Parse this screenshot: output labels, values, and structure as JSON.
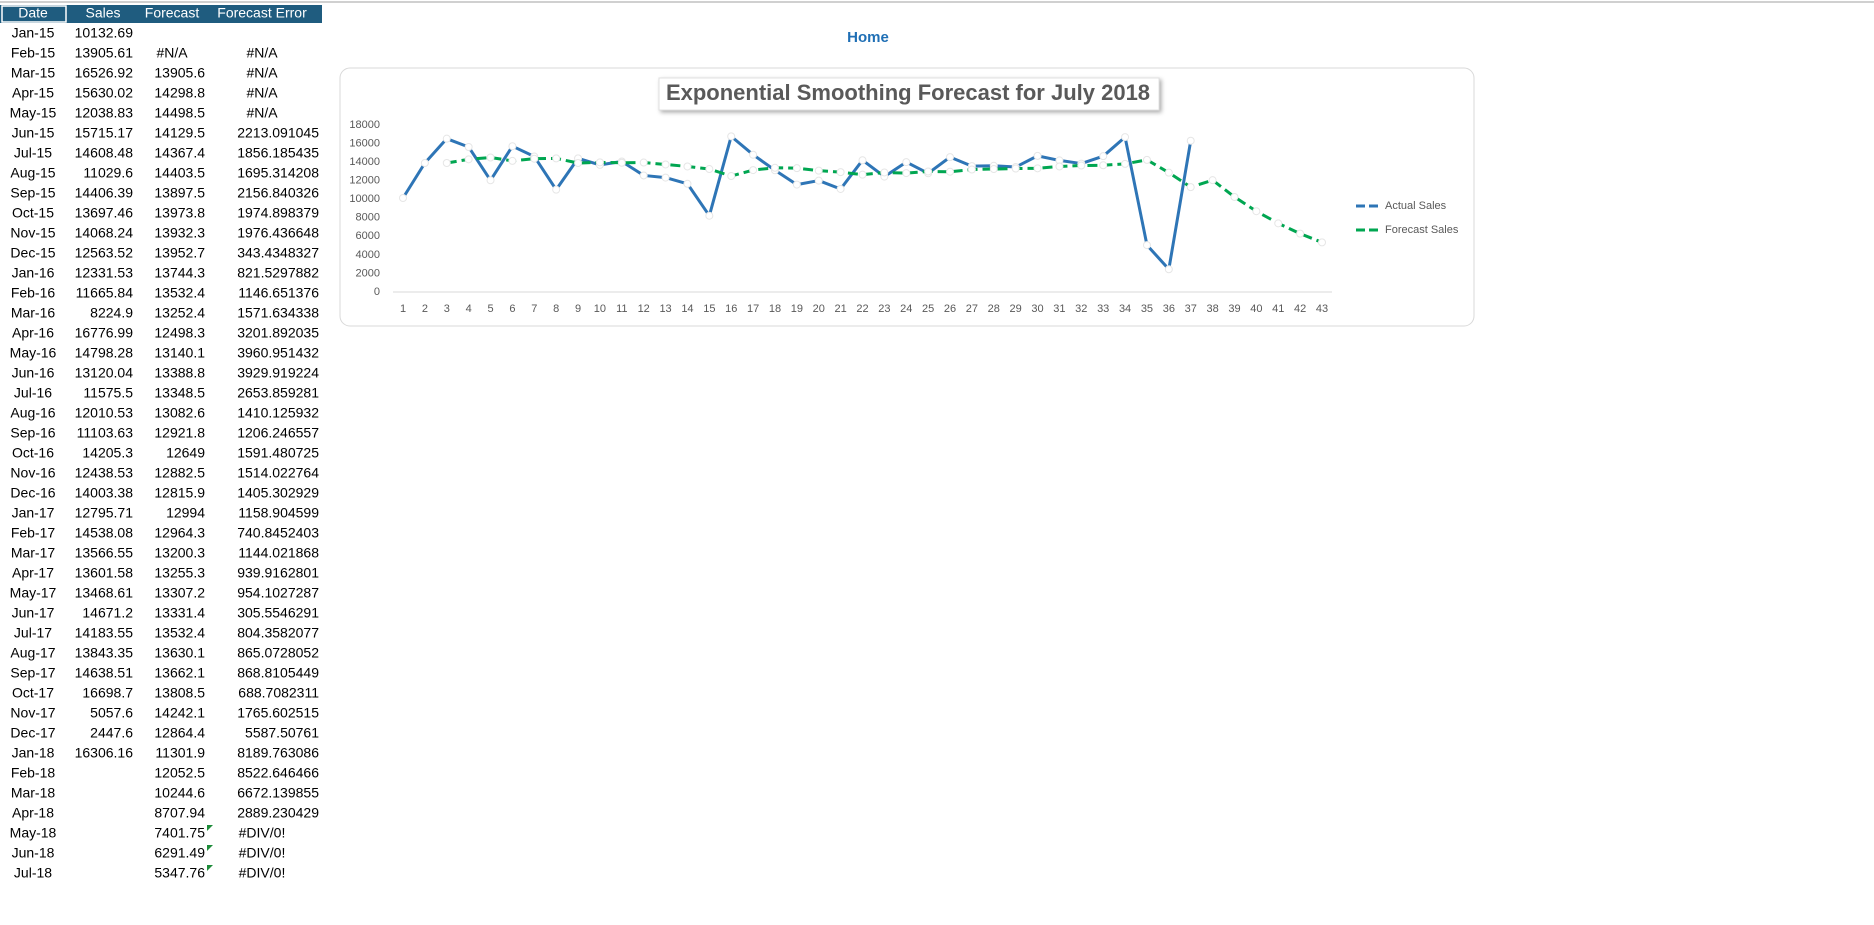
{
  "home": "Home",
  "table": {
    "header": [
      "Date",
      "Sales",
      "Forecast",
      "Forecast Error"
    ],
    "rows": [
      [
        "Jan-15",
        "10132.69",
        null,
        null
      ],
      [
        "Feb-15",
        "13905.61",
        "#N/A",
        "#N/A"
      ],
      [
        "Mar-15",
        "16526.92",
        "13905.6",
        "#N/A"
      ],
      [
        "Apr-15",
        "15630.02",
        "14298.8",
        "#N/A"
      ],
      [
        "May-15",
        "12038.83",
        "14498.5",
        "#N/A"
      ],
      [
        "Jun-15",
        "15715.17",
        "14129.5",
        "2213.091045"
      ],
      [
        "Jul-15",
        "14608.48",
        "14367.4",
        "1856.185435"
      ],
      [
        "Aug-15",
        "11029.6",
        "14403.5",
        "1695.314208"
      ],
      [
        "Sep-15",
        "14406.39",
        "13897.5",
        "2156.840326"
      ],
      [
        "Oct-15",
        "13697.46",
        "13973.8",
        "1974.898379"
      ],
      [
        "Nov-15",
        "14068.24",
        "13932.3",
        "1976.436648"
      ],
      [
        "Dec-15",
        "12563.52",
        "13952.7",
        "343.4348327"
      ],
      [
        "Jan-16",
        "12331.53",
        "13744.3",
        "821.5297882"
      ],
      [
        "Feb-16",
        "11665.84",
        "13532.4",
        "1146.651376"
      ],
      [
        "Mar-16",
        "8224.9",
        "13252.4",
        "1571.634338"
      ],
      [
        "Apr-16",
        "16776.99",
        "12498.3",
        "3201.892035"
      ],
      [
        "May-16",
        "14798.28",
        "13140.1",
        "3960.951432"
      ],
      [
        "Jun-16",
        "13120.04",
        "13388.8",
        "3929.919224"
      ],
      [
        "Jul-16",
        "11575.5",
        "13348.5",
        "2653.859281"
      ],
      [
        "Aug-16",
        "12010.53",
        "13082.6",
        "1410.125932"
      ],
      [
        "Sep-16",
        "11103.63",
        "12921.8",
        "1206.246557"
      ],
      [
        "Oct-16",
        "14205.3",
        "12649",
        "1591.480725"
      ],
      [
        "Nov-16",
        "12438.53",
        "12882.5",
        "1514.022764"
      ],
      [
        "Dec-16",
        "14003.38",
        "12815.9",
        "1405.302929"
      ],
      [
        "Jan-17",
        "12795.71",
        "12994",
        "1158.904599"
      ],
      [
        "Feb-17",
        "14538.08",
        "12964.3",
        "740.8452403"
      ],
      [
        "Mar-17",
        "13566.55",
        "13200.3",
        "1144.021868"
      ],
      [
        "Apr-17",
        "13601.58",
        "13255.3",
        "939.9162801"
      ],
      [
        "May-17",
        "13468.61",
        "13307.2",
        "954.1027287"
      ],
      [
        "Jun-17",
        "14671.2",
        "13331.4",
        "305.5546291"
      ],
      [
        "Jul-17",
        "14183.55",
        "13532.4",
        "804.3582077"
      ],
      [
        "Aug-17",
        "13843.35",
        "13630.1",
        "865.0728052"
      ],
      [
        "Sep-17",
        "14638.51",
        "13662.1",
        "868.8105449"
      ],
      [
        "Oct-17",
        "16698.7",
        "13808.5",
        "688.7082311"
      ],
      [
        "Nov-17",
        "5057.6",
        "14242.1",
        "1765.602515"
      ],
      [
        "Dec-17",
        "2447.6",
        "12864.4",
        "5587.50761"
      ],
      [
        "Jan-18",
        "16306.16",
        "11301.9",
        "8189.763086"
      ],
      [
        "Feb-18",
        null,
        "12052.5",
        "8522.646466"
      ],
      [
        "Mar-18",
        null,
        "10244.6",
        "6672.139855"
      ],
      [
        "Apr-18",
        null,
        "8707.94",
        "2889.230429"
      ],
      [
        "May-18",
        null,
        "7401.75",
        "#DIV/0!"
      ],
      [
        "Jun-18",
        null,
        "6291.49",
        "#DIV/0!"
      ],
      [
        "Jul-18",
        null,
        "5347.76",
        "#DIV/0!"
      ]
    ]
  },
  "chart_data": {
    "type": "line",
    "title": "Exponential Smoothing Forecast  for July 2018",
    "categories": [
      1,
      2,
      3,
      4,
      5,
      6,
      7,
      8,
      9,
      10,
      11,
      12,
      13,
      14,
      15,
      16,
      17,
      18,
      19,
      20,
      21,
      22,
      23,
      24,
      25,
      26,
      27,
      28,
      29,
      30,
      31,
      32,
      33,
      34,
      35,
      36,
      37,
      38,
      39,
      40,
      41,
      42,
      43
    ],
    "ylim": [
      0,
      18000
    ],
    "yticks": [
      0,
      2000,
      4000,
      6000,
      8000,
      10000,
      12000,
      14000,
      16000,
      18000
    ],
    "legend": "right",
    "series": [
      {
        "name": "Actual Sales",
        "color": "#2e75b6",
        "dashed": false,
        "values": [
          10132.69,
          13905.61,
          16526.92,
          15630.02,
          12038.83,
          15715.17,
          14608.48,
          11029.6,
          14406.39,
          13697.46,
          14068.24,
          12563.52,
          12331.53,
          11665.84,
          8224.9,
          16776.99,
          14798.28,
          13120.04,
          11575.5,
          12010.53,
          11103.63,
          14205.3,
          12438.53,
          14003.38,
          12795.71,
          14538.08,
          13566.55,
          13601.58,
          13468.61,
          14671.2,
          14183.55,
          13843.35,
          14638.51,
          16698.7,
          5057.6,
          2447.6,
          16306.16,
          null,
          null,
          null,
          null,
          null,
          null
        ]
      },
      {
        "name": "Forecast Sales",
        "color": "#00a651",
        "dashed": true,
        "values": [
          null,
          null,
          13905.6,
          14298.8,
          14498.5,
          14129.5,
          14367.4,
          14403.5,
          13897.5,
          13973.8,
          13932.3,
          13952.7,
          13744.3,
          13532.4,
          13252.4,
          12498.3,
          13140.1,
          13388.8,
          13348.5,
          13082.6,
          12921.8,
          12649,
          12882.5,
          12815.9,
          12994,
          12964.3,
          13200.3,
          13255.3,
          13307.2,
          13331.4,
          13532.4,
          13630.1,
          13662.1,
          13808.5,
          14242.1,
          12864.4,
          11301.9,
          12052.5,
          10244.6,
          8707.94,
          7401.75,
          6291.49,
          5347.76
        ]
      }
    ]
  }
}
